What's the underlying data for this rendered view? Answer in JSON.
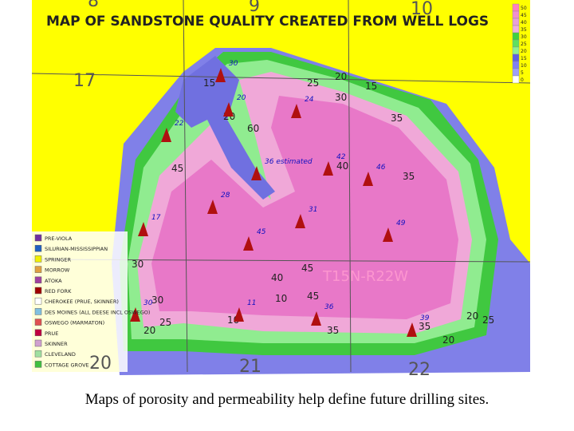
{
  "map": {
    "title": "MAP OF SANDSTONE QUALITY CREATED FROM WELL LOGS",
    "sections": [
      "8",
      "9",
      "10",
      "17",
      "20",
      "21",
      "22"
    ],
    "township": "T15N-R22W",
    "contour_labels": [
      "20",
      "15",
      "30",
      "25",
      "20",
      "35",
      "45",
      "60",
      "35",
      "40",
      "45",
      "30",
      "40",
      "45",
      "35",
      "25",
      "20",
      "10",
      "20",
      "35",
      "30",
      "20",
      "25",
      "15",
      "10"
    ],
    "wells": [
      "30",
      "20",
      "22",
      "24",
      "36 estimated",
      "42",
      "46",
      "28",
      "31",
      "17",
      "45",
      "49",
      "30",
      "11",
      "36",
      "39"
    ],
    "legend": [
      {
        "label": "PRE-VIOLA",
        "color": "#7030a0"
      },
      {
        "label": "SILURIAN-MISSISSIPPIAN",
        "color": "#2060c0"
      },
      {
        "label": "SPRINGER",
        "color": "#f0f000"
      },
      {
        "label": "MORROW",
        "color": "#e0a040"
      },
      {
        "label": "ATOKA",
        "color": "#a040a0"
      },
      {
        "label": "RED FORK",
        "color": "#a00000"
      },
      {
        "label": "CHEROKEE (PRUE, SKINNER)",
        "color": "#ffffff"
      },
      {
        "label": "DES MOINES (ALL DEESE INCL OSWEGO)",
        "color": "#80c0e0"
      },
      {
        "label": "OSWEGO (MARMATON)",
        "color": "#e05050"
      },
      {
        "label": "PRUE",
        "color": "#c00040"
      },
      {
        "label": "SKINNER",
        "color": "#d0a0d0"
      },
      {
        "label": "CLEVELAND",
        "color": "#a0e0a0"
      },
      {
        "label": "COTTAGE GROVE",
        "color": "#40c040"
      }
    ],
    "scale": [
      {
        "label": "50",
        "color": "#ff80c0"
      },
      {
        "label": "45",
        "color": "#f090d0"
      },
      {
        "label": "40",
        "color": "#e8a0d8"
      },
      {
        "label": "35",
        "color": "#f0b0e0"
      },
      {
        "label": "30",
        "color": "#40d040"
      },
      {
        "label": "25",
        "color": "#60e060"
      },
      {
        "label": "20",
        "color": "#90f090"
      },
      {
        "label": "15",
        "color": "#6060e0"
      },
      {
        "label": "10",
        "color": "#8080f0"
      },
      {
        "label": "5",
        "color": "#a0a0f8"
      },
      {
        "label": "0",
        "color": "#ffffff"
      }
    ]
  },
  "caption": "Maps of porosity and permeability help define future drilling sites."
}
